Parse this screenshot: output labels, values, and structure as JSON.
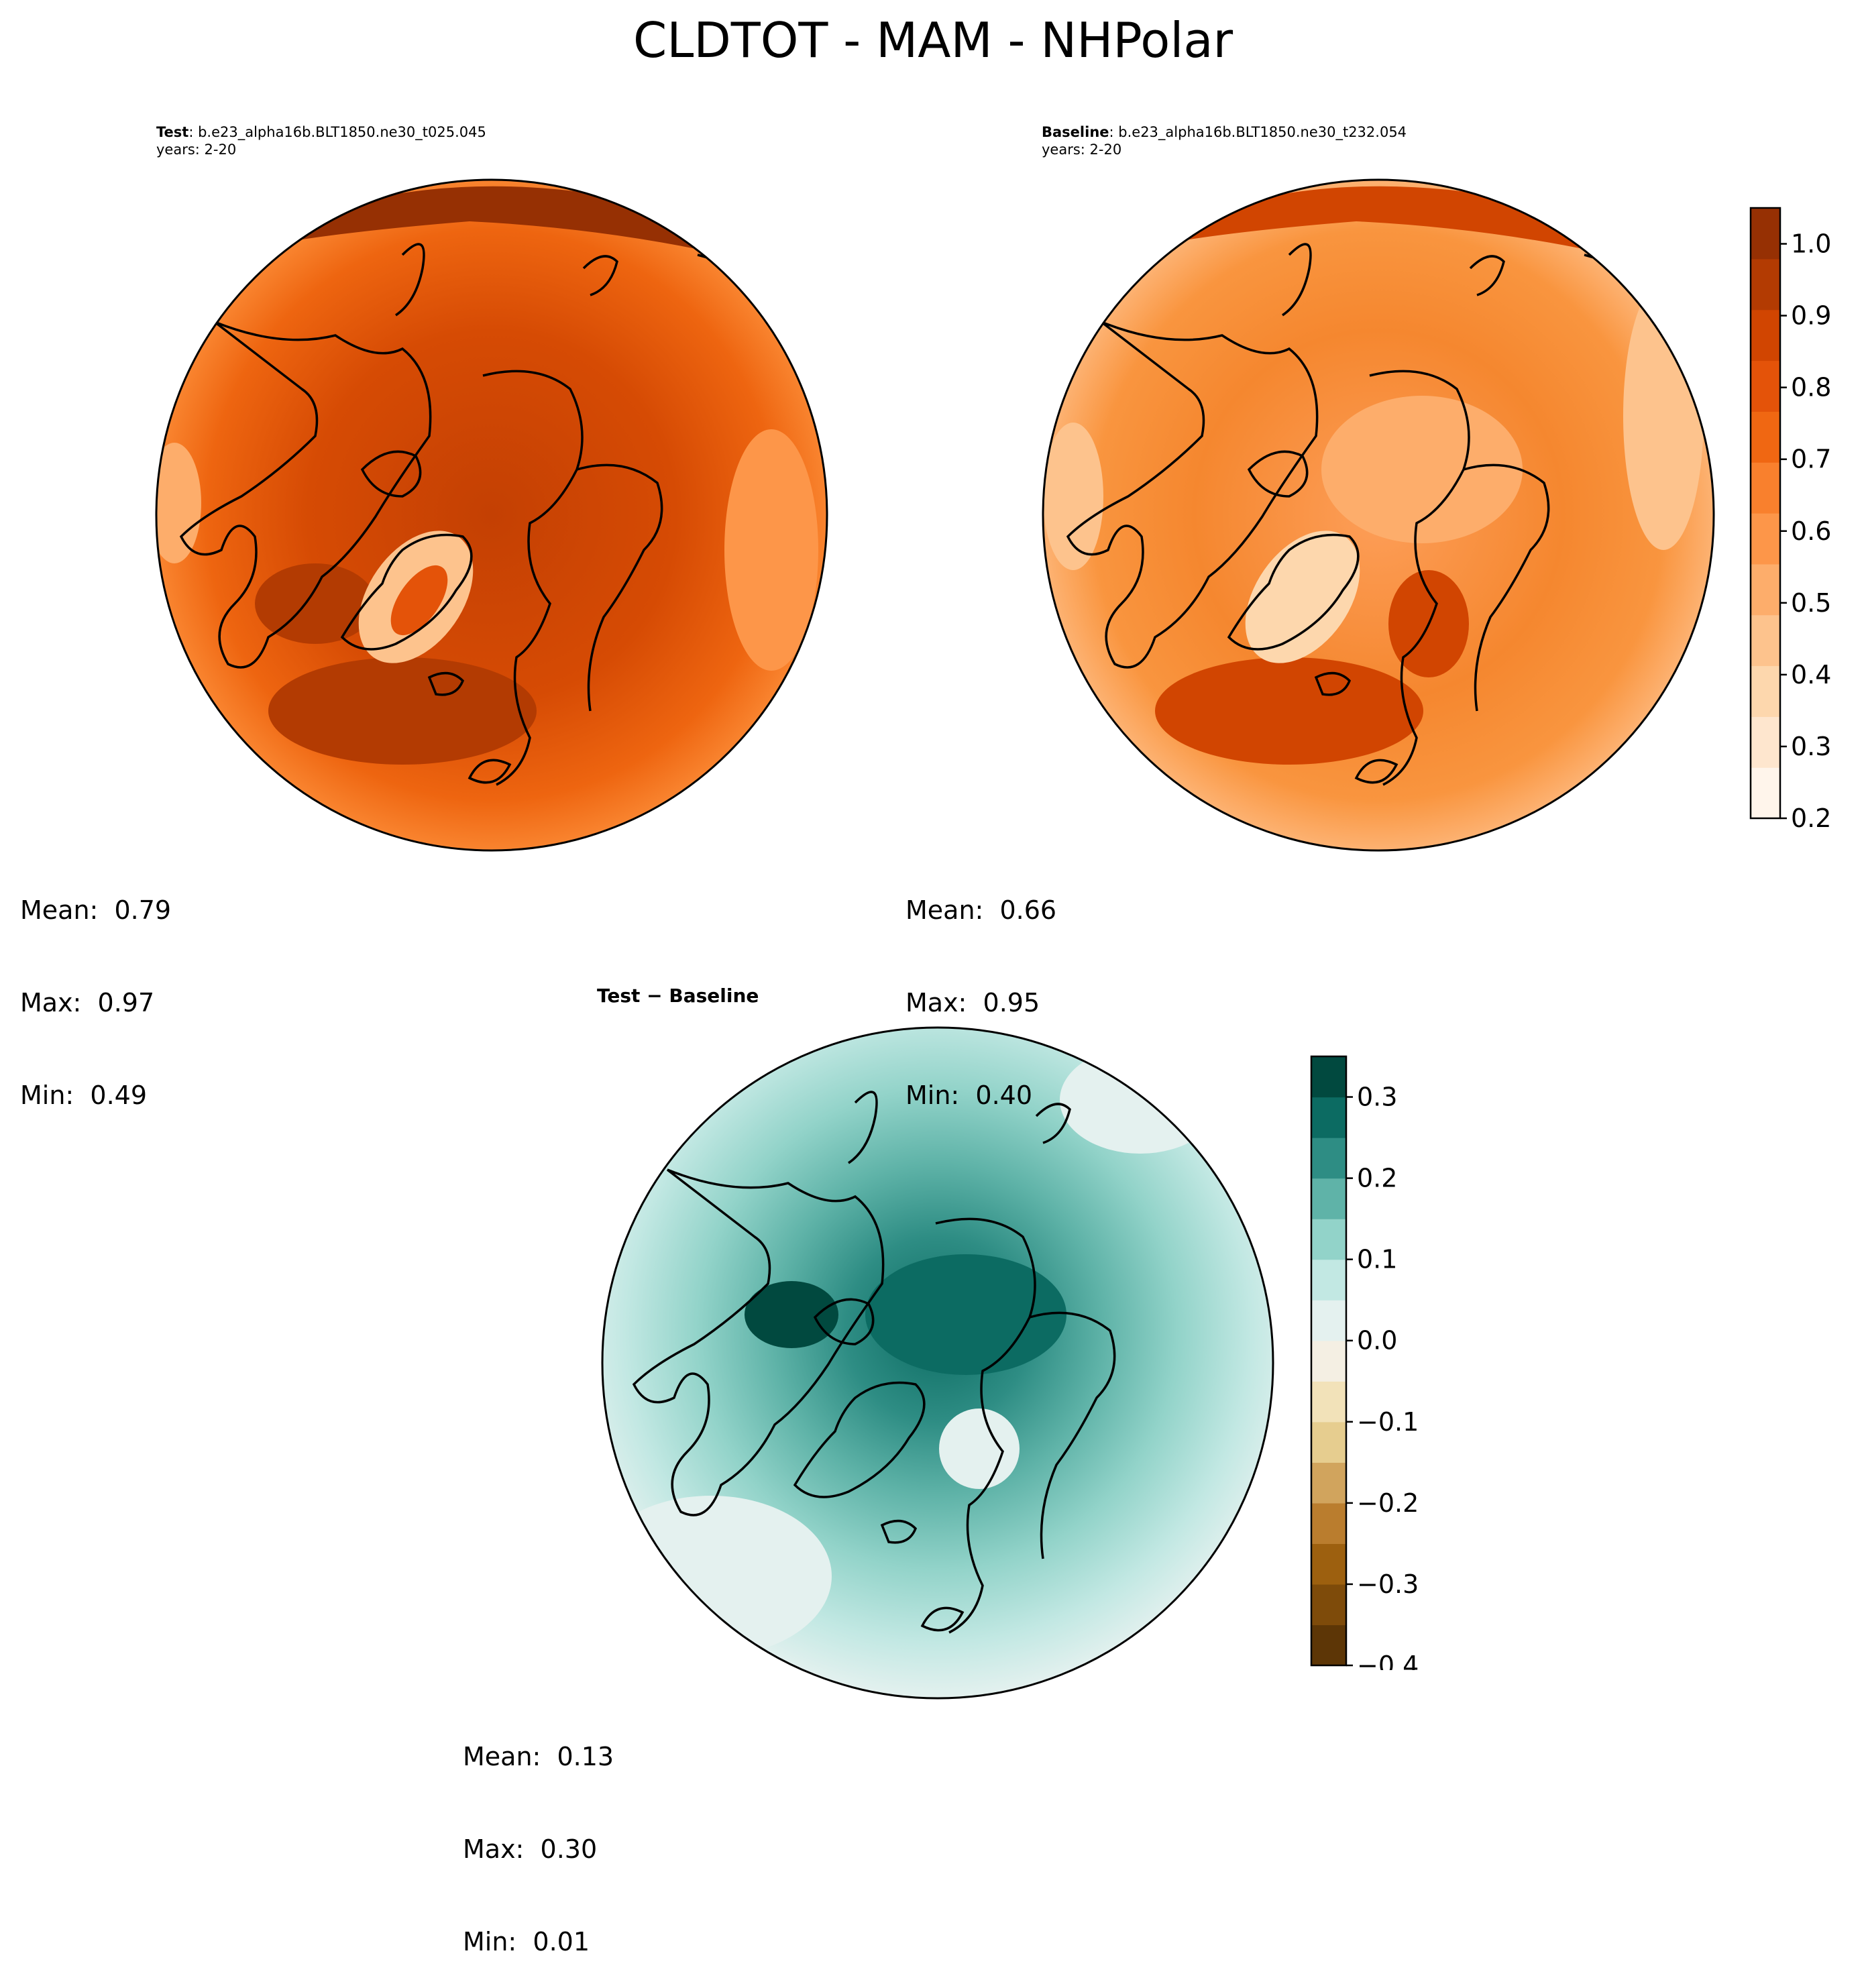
{
  "figure": {
    "title": "CLDTOT - MAM - NHPolar"
  },
  "chart_data": [
    {
      "type": "heatmap",
      "panel": "test",
      "title_bold": "Test",
      "title_rest": ": b.e23_alpha16b.BLT1850.ne30_t025.045",
      "subtitle": "years: 2-20",
      "projection": "north polar stereographic",
      "colormap": "Oranges",
      "stats": {
        "mean_label": "Mean:  0.79",
        "max_label": "Max:  0.97",
        "min_label": "Min:  0.49",
        "mean": 0.79,
        "max": 0.97,
        "min": 0.49
      }
    },
    {
      "type": "heatmap",
      "panel": "baseline",
      "title_bold": "Baseline",
      "title_rest": ": b.e23_alpha16b.BLT1850.ne30_t232.054",
      "subtitle": "years: 2-20",
      "projection": "north polar stereographic",
      "colormap": "Oranges",
      "stats": {
        "mean_label": "Mean:  0.66",
        "max_label": "Max:  0.95",
        "min_label": "Min:  0.40",
        "mean": 0.66,
        "max": 0.95,
        "min": 0.4
      }
    },
    {
      "type": "heatmap",
      "panel": "difference",
      "title_bold": "Test − Baseline",
      "title_rest": "",
      "subtitle": "",
      "projection": "north polar stereographic",
      "colormap": "BrBG",
      "stats": {
        "mean_label": "Mean:  0.13",
        "max_label": "Max:  0.30",
        "min_label": "Min:  0.01",
        "mean": 0.13,
        "max": 0.3,
        "min": 0.01
      }
    }
  ],
  "colorbars": {
    "main": {
      "ticks": [
        "0.2",
        "0.3",
        "0.4",
        "0.5",
        "0.6",
        "0.7",
        "0.8",
        "0.9",
        "1.0"
      ],
      "levels": [
        0.2,
        1.05
      ],
      "colors": [
        "#fff5eb",
        "#fee6ce",
        "#fdd7ad",
        "#fdc38d",
        "#fdad6b",
        "#fd9649",
        "#f9802d",
        "#f06712",
        "#e45309",
        "#d14501",
        "#b33b02",
        "#963003"
      ]
    },
    "diff": {
      "ticks": [
        "−0.4",
        "−0.3",
        "−0.2",
        "−0.1",
        "0.0",
        "0.1",
        "0.2",
        "0.3"
      ],
      "levels": [
        -0.4,
        0.35
      ],
      "colors": [
        "#5d3606",
        "#7e4b0a",
        "#9d600f",
        "#ba7d2e",
        "#d1a45d",
        "#e6cd8f",
        "#f2e2b9",
        "#f4efe3",
        "#e4f1ef",
        "#c2e8e3",
        "#92d3c9",
        "#5fb3a8",
        "#2e8d84",
        "#0c6b62",
        "#01493f"
      ]
    }
  }
}
